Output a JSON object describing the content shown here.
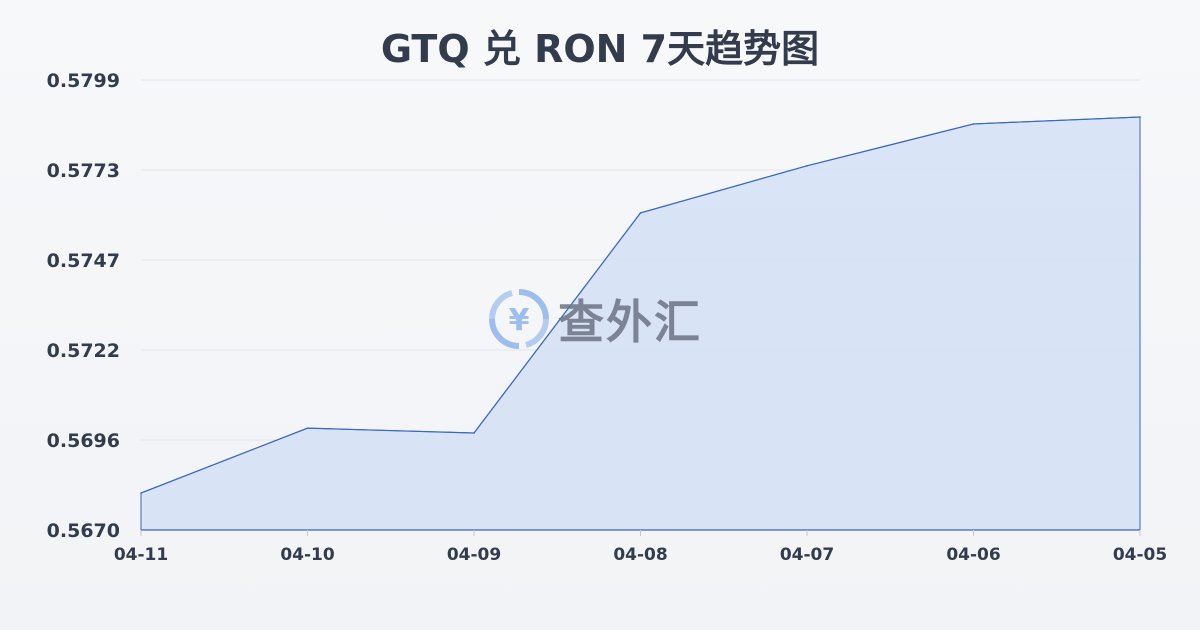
{
  "chart_data": {
    "type": "area",
    "title": "GTQ 兑 RON 7天趋势图",
    "categories": [
      "04-11",
      "04-10",
      "04-09",
      "04-08",
      "04-07",
      "04-06",
      "04-05"
    ],
    "values": [
      0.56806,
      0.56992,
      0.56978,
      0.57609,
      0.57744,
      0.57864,
      0.57884
    ],
    "yticks": [
      "0.5799",
      "0.5773",
      "0.5747",
      "0.5722",
      "0.5696",
      "0.5670"
    ],
    "ylim": [
      0.567,
      0.5799
    ],
    "grid": true,
    "line_color": "#3a66c8",
    "fill_color": "#d6e1f5"
  },
  "watermark": {
    "text": "查外汇",
    "icon": "yen-exchange-icon",
    "icon_color": "#8fb4ee"
  }
}
